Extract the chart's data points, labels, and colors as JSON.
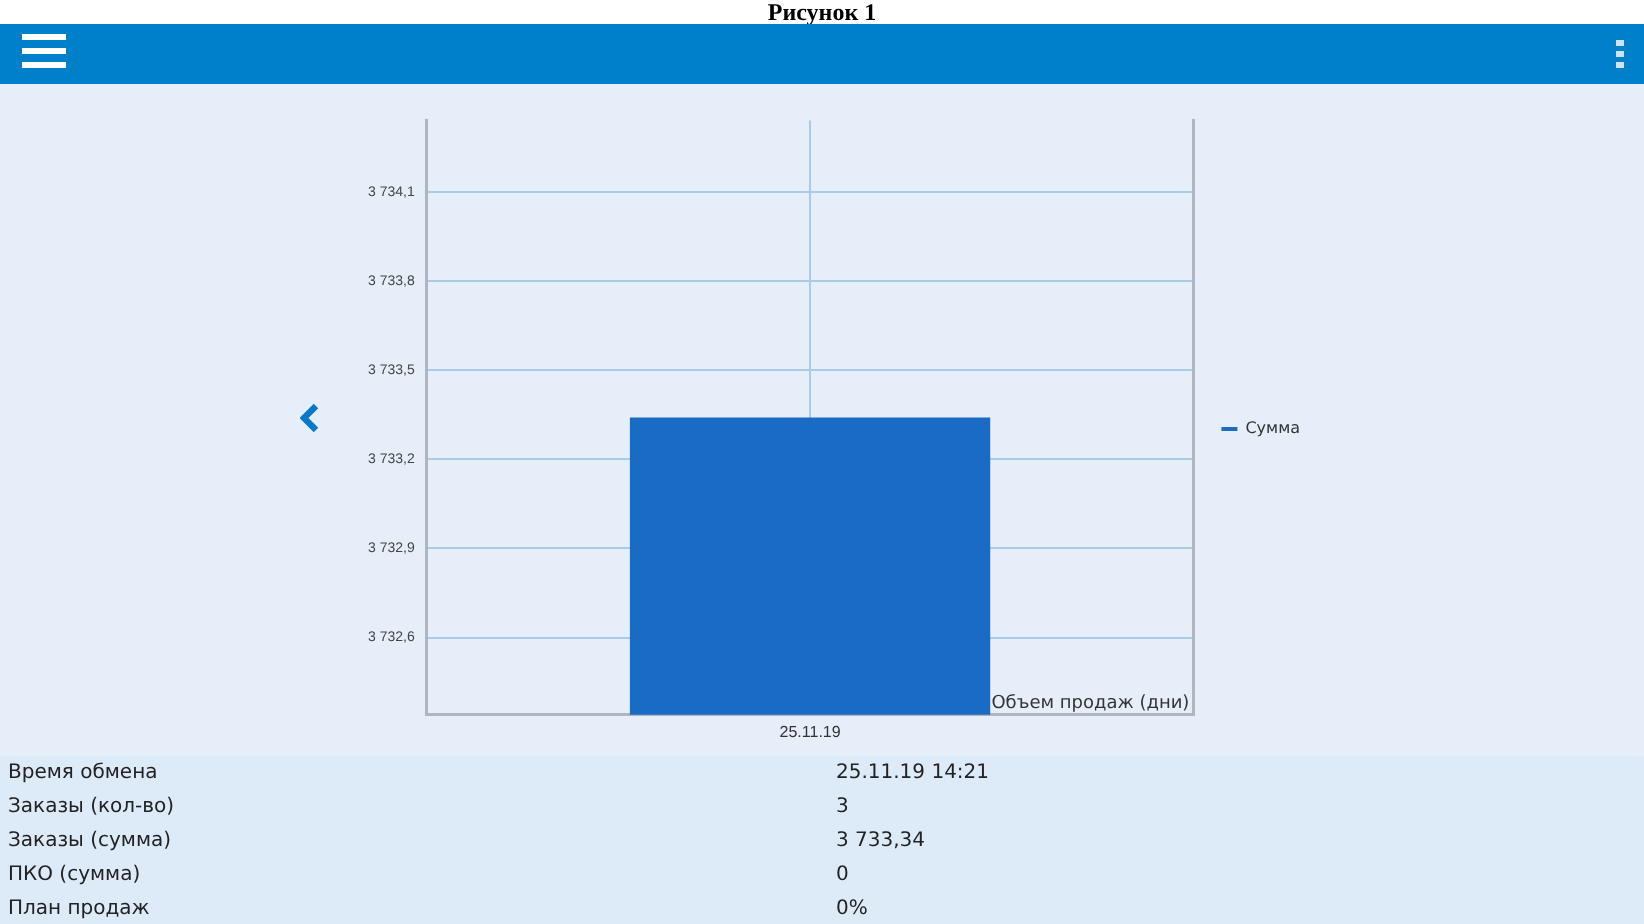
{
  "chart_data": {
    "type": "bar",
    "title": "Рисунок 1",
    "xlabel": "Объем продаж (дни)",
    "categories": [
      "25.11.19"
    ],
    "series": [
      {
        "name": "Сумма",
        "color": "#1a6bc4",
        "values": [
          3733.34
        ]
      }
    ],
    "ylim": [
      3732.34,
      3734.34
    ],
    "yticks": [
      {
        "value": 3732.6,
        "label": "3 732,6"
      },
      {
        "value": 3732.9,
        "label": "3 732,9"
      },
      {
        "value": 3733.2,
        "label": "3 733,2"
      },
      {
        "value": 3733.5,
        "label": "3 733,5"
      },
      {
        "value": 3733.8,
        "label": "3 733,8"
      },
      {
        "value": 3734.1,
        "label": "3 734,1"
      }
    ],
    "grid": true,
    "legend": "right",
    "annotations": [
      "Время обмена",
      "25.11.19 14:21",
      "Заказы (кол-во)",
      "3",
      "Заказы (сумма)",
      "3 733,34",
      "ПКО (сумма)",
      "0",
      "План продаж",
      "0%"
    ]
  }
}
